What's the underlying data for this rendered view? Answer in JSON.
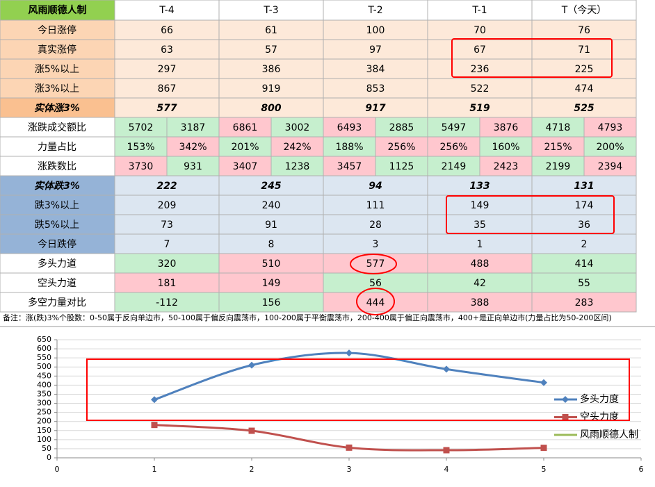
{
  "table": {
    "header": [
      "风雨顺德人制",
      "T-4",
      "T-3",
      "T-2",
      "T-1",
      "T（今天）"
    ],
    "rows": [
      {
        "label": "今日涨停",
        "cells": [
          66,
          61,
          100,
          70,
          76
        ]
      },
      {
        "label": "真实涨停",
        "cells": [
          63,
          57,
          97,
          67,
          71
        ]
      },
      {
        "label": "涨5%以上",
        "cells": [
          297,
          386,
          384,
          236,
          225
        ]
      },
      {
        "label": "涨3%以上",
        "cells": [
          867,
          919,
          853,
          522,
          474
        ]
      },
      {
        "label": "实体涨3%",
        "cells": [
          577,
          800,
          917,
          519,
          525
        ]
      },
      {
        "label": "涨跌成交额比",
        "cells": [
          [
            5702,
            3187
          ],
          [
            6861,
            3002
          ],
          [
            6493,
            2885
          ],
          [
            5497,
            3876
          ],
          [
            4718,
            4793
          ]
        ]
      },
      {
        "label": "力量占比",
        "cells": [
          [
            "153%",
            "342%"
          ],
          [
            "201%",
            "242%"
          ],
          [
            "188%",
            "256%"
          ],
          [
            "256%",
            "160%"
          ],
          [
            "215%",
            "200%"
          ]
        ]
      },
      {
        "label": "涨跌数比",
        "cells": [
          [
            3730,
            931
          ],
          [
            3407,
            1238
          ],
          [
            3457,
            1125
          ],
          [
            2149,
            2423
          ],
          [
            2199,
            2394
          ]
        ]
      },
      {
        "label": "实体跌3%",
        "cells": [
          222,
          245,
          94,
          133,
          131
        ]
      },
      {
        "label": "跌3%以上",
        "cells": [
          209,
          240,
          111,
          149,
          174
        ]
      },
      {
        "label": "跌5%以上",
        "cells": [
          73,
          91,
          28,
          35,
          36
        ]
      },
      {
        "label": "今日跌停",
        "cells": [
          7,
          8,
          3,
          1,
          2
        ]
      },
      {
        "label": "多头力道",
        "cells": [
          320,
          510,
          577,
          488,
          414
        ]
      },
      {
        "label": "空头力道",
        "cells": [
          181,
          149,
          56,
          42,
          55
        ]
      },
      {
        "label": "多空力量对比",
        "cells": [
          -112,
          156,
          444,
          388,
          283
        ]
      }
    ],
    "note": "备注：涨(跌)3%个股数：0-50属于反向单边市，50-100属于偏反向震荡市，100-200属于平衡震荡市，200-400属于偏正向震荡市，400+是正向单边市(力量占比为50-200区间)"
  },
  "chart_data": {
    "type": "line",
    "x": [
      1,
      2,
      3,
      4,
      5
    ],
    "series": [
      {
        "name": "多头力度",
        "color": "#4f81bd",
        "marker": "diamond",
        "values": [
          320,
          510,
          577,
          488,
          414
        ]
      },
      {
        "name": "空头力度",
        "color": "#c0504d",
        "marker": "square",
        "values": [
          181,
          149,
          56,
          42,
          55
        ]
      },
      {
        "name": "风雨顺德人制",
        "color": "#9bbb59",
        "values": [
          null,
          null,
          null,
          null,
          null
        ]
      }
    ],
    "xlim": [
      0,
      6
    ],
    "xticks": [
      0,
      1,
      2,
      3,
      4,
      5,
      6
    ],
    "ylim": [
      0,
      650
    ],
    "yticks": [
      0,
      50,
      100,
      150,
      200,
      250,
      300,
      350,
      400,
      450,
      500,
      550,
      600,
      650
    ],
    "grid": true,
    "smooth": true,
    "legend": "right"
  }
}
